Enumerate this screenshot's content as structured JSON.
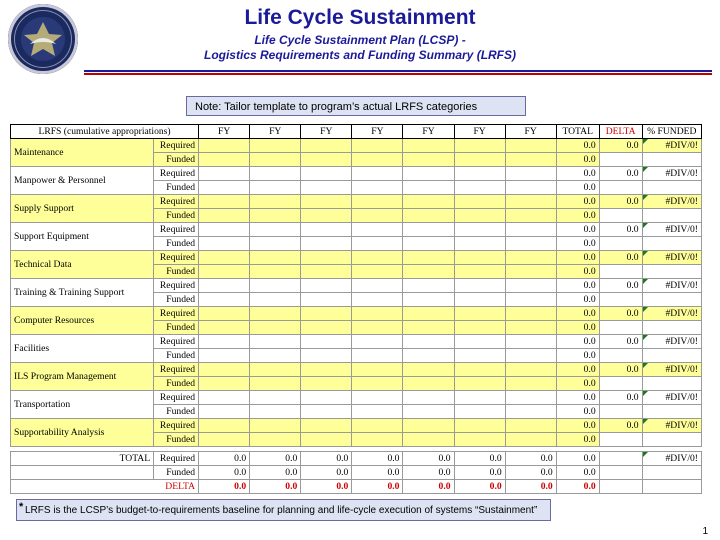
{
  "header": {
    "title": "Life Cycle Sustainment",
    "subtitle1": "Life Cycle Sustainment Plan (LCSP) -",
    "subtitle2": "Logistics Requirements and Funding Summary (LRFS)"
  },
  "note": "Note: Tailor template to program’s actual LRFS categories",
  "table": {
    "headers": [
      "LRFS (cumulative appropriations)",
      "FY",
      "FY",
      "FY",
      "FY",
      "FY",
      "FY",
      "FY",
      "TOTAL",
      "DELTA",
      "% FUNDED"
    ],
    "required_label": "Required",
    "funded_label": "Funded",
    "zero": "0.0",
    "div": "#DIV/0!",
    "categories": [
      "Maintenance",
      "Manpower & Personnel",
      "Supply Support",
      "Support Equipment",
      "Technical Data",
      "Training & Training Support",
      "Computer Resources",
      "Facilities",
      "ILS Program Management",
      "Transportation",
      "Supportability Analysis"
    ],
    "total_label": "TOTAL",
    "delta_label": "DELTA"
  },
  "footnote": {
    "marker": "*",
    "text": "LRFS is the LCSP’s budget-to-requirements baseline for planning and life-cycle execution of systems “Sustainment”"
  },
  "page_number": "1",
  "colors": {
    "title": "#1a1a9a",
    "highlight_rows": "#ffff99",
    "delta": "#cc0000",
    "note_box": "#dde3f3"
  }
}
